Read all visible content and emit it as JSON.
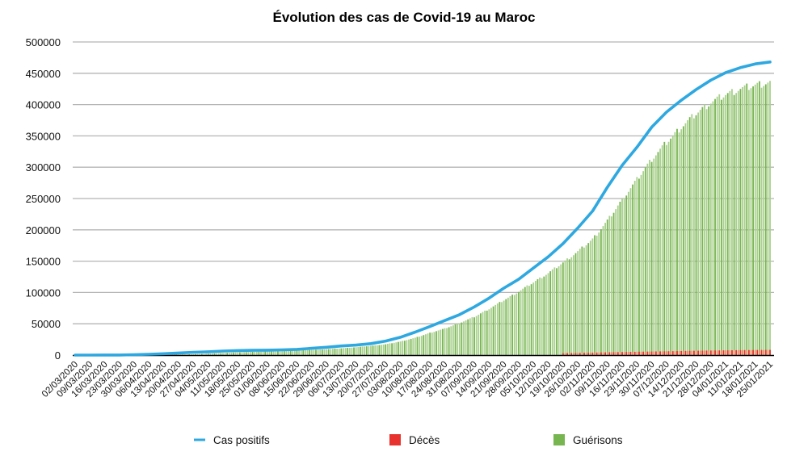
{
  "chart_data": {
    "type": "bar+line",
    "title": "Évolution des cas de Covid-19 au Maroc",
    "xlabel": "",
    "ylabel": "",
    "ylim": [
      0,
      500000
    ],
    "yticks": [
      0,
      50000,
      100000,
      150000,
      200000,
      250000,
      300000,
      350000,
      400000,
      450000,
      500000
    ],
    "ytick_labels": [
      "0",
      "50000",
      "100000",
      "150000",
      "200000",
      "250000",
      "300000",
      "350000",
      "400000",
      "450000",
      "500000"
    ],
    "grid": true,
    "legend_position": "bottom",
    "categories": [
      "02/03/2020",
      "09/03/2020",
      "16/03/2020",
      "23/03/2020",
      "30/03/2020",
      "06/04/2020",
      "13/04/2020",
      "20/04/2020",
      "27/04/2020",
      "04/05/2020",
      "11/05/2020",
      "18/05/2020",
      "25/05/2020",
      "01/06/2020",
      "08/06/2020",
      "15/06/2020",
      "22/06/2020",
      "29/06/2020",
      "06/07/2020",
      "13/07/2020",
      "20/07/2020",
      "27/07/2020",
      "03/08/2020",
      "10/08/2020",
      "17/08/2020",
      "24/08/2020",
      "31/08/2020",
      "07/09/2020",
      "14/09/2020",
      "21/09/2020",
      "28/09/2020",
      "05/10/2020",
      "12/10/2020",
      "19/10/2020",
      "26/10/2020",
      "02/11/2020",
      "09/11/2020",
      "16/11/2020",
      "23/11/2020",
      "30/11/2020",
      "07/12/2020",
      "14/12/2020",
      "21/12/2020",
      "28/12/2020",
      "04/01/2021",
      "11/01/2021",
      "18/01/2021",
      "25/01/2021"
    ],
    "series": [
      {
        "name": "Cas positifs",
        "type": "line",
        "color": "#2ea8e0",
        "values": [
          1,
          28,
          115,
          170,
          600,
          1300,
          2200,
          3400,
          4500,
          5300,
          6500,
          7200,
          7600,
          7900,
          8400,
          9200,
          10800,
          12500,
          14600,
          16000,
          18300,
          22400,
          28500,
          36700,
          45600,
          55200,
          64600,
          76900,
          91000,
          107000,
          121000,
          139000,
          157000,
          178000,
          203000,
          230000,
          268000,
          303000,
          332000,
          364000,
          388000,
          407000,
          424000,
          439000,
          451000,
          459000,
          465000,
          468000
        ]
      },
      {
        "name": "Décès",
        "type": "bar",
        "color": "#e8322d",
        "values": [
          0,
          0,
          1,
          6,
          40,
          90,
          140,
          160,
          180,
          190,
          190,
          196,
          200,
          208,
          212,
          214,
          216,
          228,
          240,
          260,
          285,
          340,
          450,
          620,
          880,
          1050,
          1210,
          1400,
          1630,
          1860,
          2120,
          2500,
          2800,
          3100,
          3450,
          3900,
          4430,
          4850,
          5300,
          5700,
          6070,
          6500,
          6900,
          7300,
          7600,
          7900,
          8100,
          8300
        ]
      },
      {
        "name": "Guérisons",
        "type": "bar",
        "color": "#77b550",
        "values": [
          0,
          0,
          1,
          10,
          60,
          200,
          500,
          900,
          1500,
          2400,
          3500,
          4500,
          5200,
          6000,
          7000,
          7800,
          8500,
          9500,
          11000,
          12800,
          15000,
          17500,
          22000,
          28000,
          36000,
          43000,
          52000,
          62000,
          75000,
          89000,
          103000,
          118000,
          133000,
          150000,
          168000,
          188000,
          218000,
          252000,
          285000,
          318000,
          345000,
          370000,
          392000,
          410000,
          423000,
          432000,
          438000,
          443000
        ]
      }
    ]
  }
}
